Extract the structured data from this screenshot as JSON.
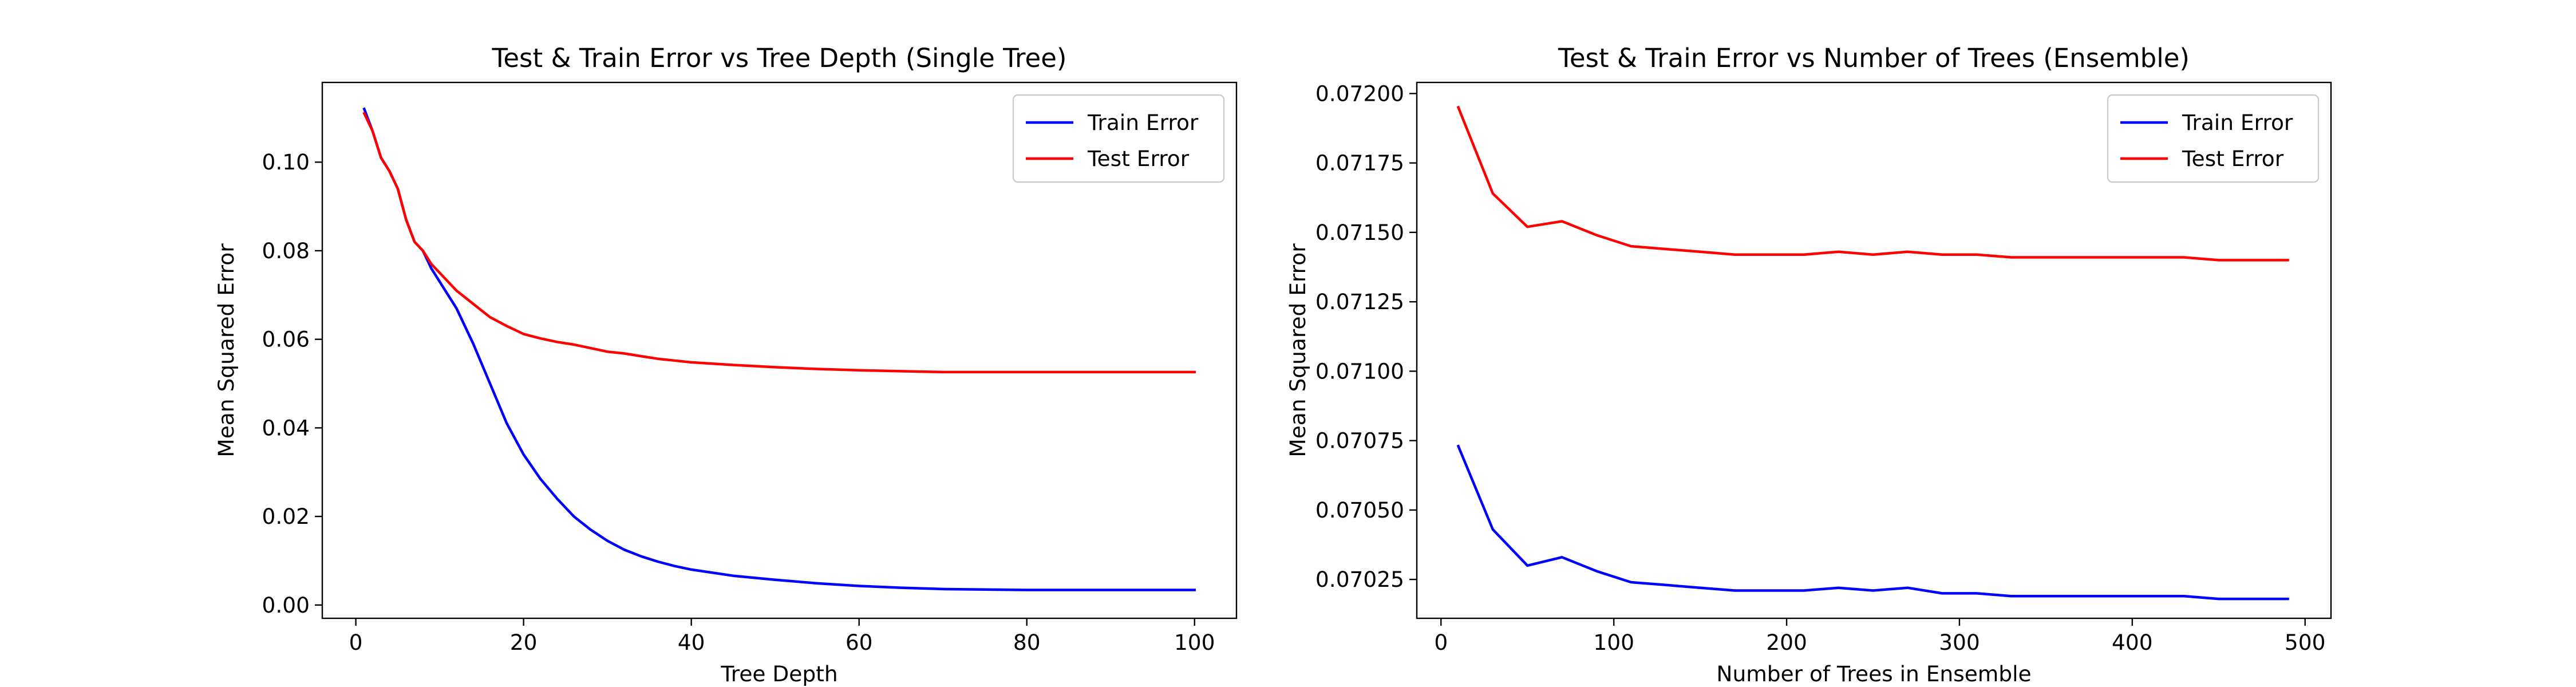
{
  "chart_data": [
    {
      "type": "line",
      "title": "Test & Train Error vs Tree Depth (Single Tree)",
      "xlabel": "Tree Depth",
      "ylabel": "Mean Squared Error",
      "xlim": [
        -4,
        105
      ],
      "ylim": [
        -0.003,
        0.118
      ],
      "xticks": [
        0,
        20,
        40,
        60,
        80,
        100
      ],
      "yticks": [
        0.0,
        0.02,
        0.04,
        0.06,
        0.08,
        0.1
      ],
      "ytick_labels": [
        "0.00",
        "0.02",
        "0.04",
        "0.06",
        "0.08",
        "0.10"
      ],
      "grid": false,
      "legend": "top-right",
      "series": [
        {
          "name": "Train Error",
          "color": "#0000ff",
          "x": [
            1,
            2,
            3,
            4,
            5,
            6,
            7,
            8,
            9,
            10,
            12,
            14,
            16,
            18,
            20,
            22,
            24,
            26,
            28,
            30,
            32,
            34,
            36,
            38,
            40,
            45,
            50,
            55,
            60,
            65,
            70,
            75,
            80,
            85,
            90,
            95,
            100
          ],
          "y": [
            0.112,
            0.107,
            0.101,
            0.098,
            0.094,
            0.087,
            0.082,
            0.08,
            0.076,
            0.073,
            0.067,
            0.059,
            0.05,
            0.041,
            0.034,
            0.0285,
            0.024,
            0.02,
            0.017,
            0.0145,
            0.0125,
            0.011,
            0.0098,
            0.0088,
            0.008,
            0.0066,
            0.0057,
            0.0049,
            0.0043,
            0.0039,
            0.0036,
            0.0035,
            0.0034,
            0.0034,
            0.0034,
            0.0034,
            0.0034
          ]
        },
        {
          "name": "Test Error",
          "color": "#ff0000",
          "x": [
            1,
            2,
            3,
            4,
            5,
            6,
            7,
            8,
            9,
            10,
            12,
            14,
            16,
            18,
            20,
            22,
            24,
            26,
            28,
            30,
            32,
            34,
            36,
            38,
            40,
            45,
            50,
            55,
            60,
            65,
            70,
            75,
            80,
            85,
            90,
            95,
            100
          ],
          "y": [
            0.111,
            0.107,
            0.101,
            0.098,
            0.094,
            0.087,
            0.082,
            0.08,
            0.077,
            0.075,
            0.071,
            0.068,
            0.065,
            0.063,
            0.0612,
            0.0602,
            0.0594,
            0.0588,
            0.058,
            0.0572,
            0.0568,
            0.0562,
            0.0556,
            0.0552,
            0.0548,
            0.0542,
            0.0537,
            0.0533,
            0.053,
            0.0528,
            0.0526,
            0.0526,
            0.0526,
            0.0526,
            0.0526,
            0.0526,
            0.0526
          ]
        }
      ]
    },
    {
      "type": "line",
      "title": "Test & Train Error vs Number of Trees (Ensemble)",
      "xlabel": "Number of Trees in Ensemble",
      "ylabel": "Mean Squared Error",
      "xlim": [
        -14,
        515
      ],
      "ylim": [
        0.07011,
        0.07204
      ],
      "xticks": [
        0,
        100,
        200,
        300,
        400,
        500
      ],
      "yticks": [
        0.07025,
        0.0705,
        0.07075,
        0.071,
        0.07125,
        0.0715,
        0.07175,
        0.072
      ],
      "ytick_labels": [
        "0.07025",
        "0.07050",
        "0.07075",
        "0.07100",
        "0.07125",
        "0.07150",
        "0.07175",
        "0.07200"
      ],
      "grid": false,
      "legend": "top-right",
      "series": [
        {
          "name": "Train Error",
          "color": "#0000ff",
          "x": [
            10,
            30,
            50,
            70,
            90,
            110,
            130,
            150,
            170,
            190,
            210,
            230,
            250,
            270,
            290,
            310,
            330,
            350,
            370,
            390,
            410,
            430,
            450,
            470,
            490
          ],
          "y": [
            0.07073,
            0.07043,
            0.0703,
            0.07033,
            0.07028,
            0.07024,
            0.07023,
            0.07022,
            0.07021,
            0.07021,
            0.07021,
            0.07022,
            0.07021,
            0.07022,
            0.0702,
            0.0702,
            0.07019,
            0.07019,
            0.07019,
            0.07019,
            0.07019,
            0.07019,
            0.07018,
            0.07018,
            0.07018
          ]
        },
        {
          "name": "Test Error",
          "color": "#ff0000",
          "x": [
            10,
            30,
            50,
            70,
            90,
            110,
            130,
            150,
            170,
            190,
            210,
            230,
            250,
            270,
            290,
            310,
            330,
            350,
            370,
            390,
            410,
            430,
            450,
            470,
            490
          ],
          "y": [
            0.07195,
            0.07164,
            0.07152,
            0.07154,
            0.07149,
            0.07145,
            0.07144,
            0.07143,
            0.07142,
            0.07142,
            0.07142,
            0.07143,
            0.07142,
            0.07143,
            0.07142,
            0.07142,
            0.07141,
            0.07141,
            0.07141,
            0.07141,
            0.07141,
            0.07141,
            0.0714,
            0.0714,
            0.0714
          ]
        }
      ]
    }
  ]
}
